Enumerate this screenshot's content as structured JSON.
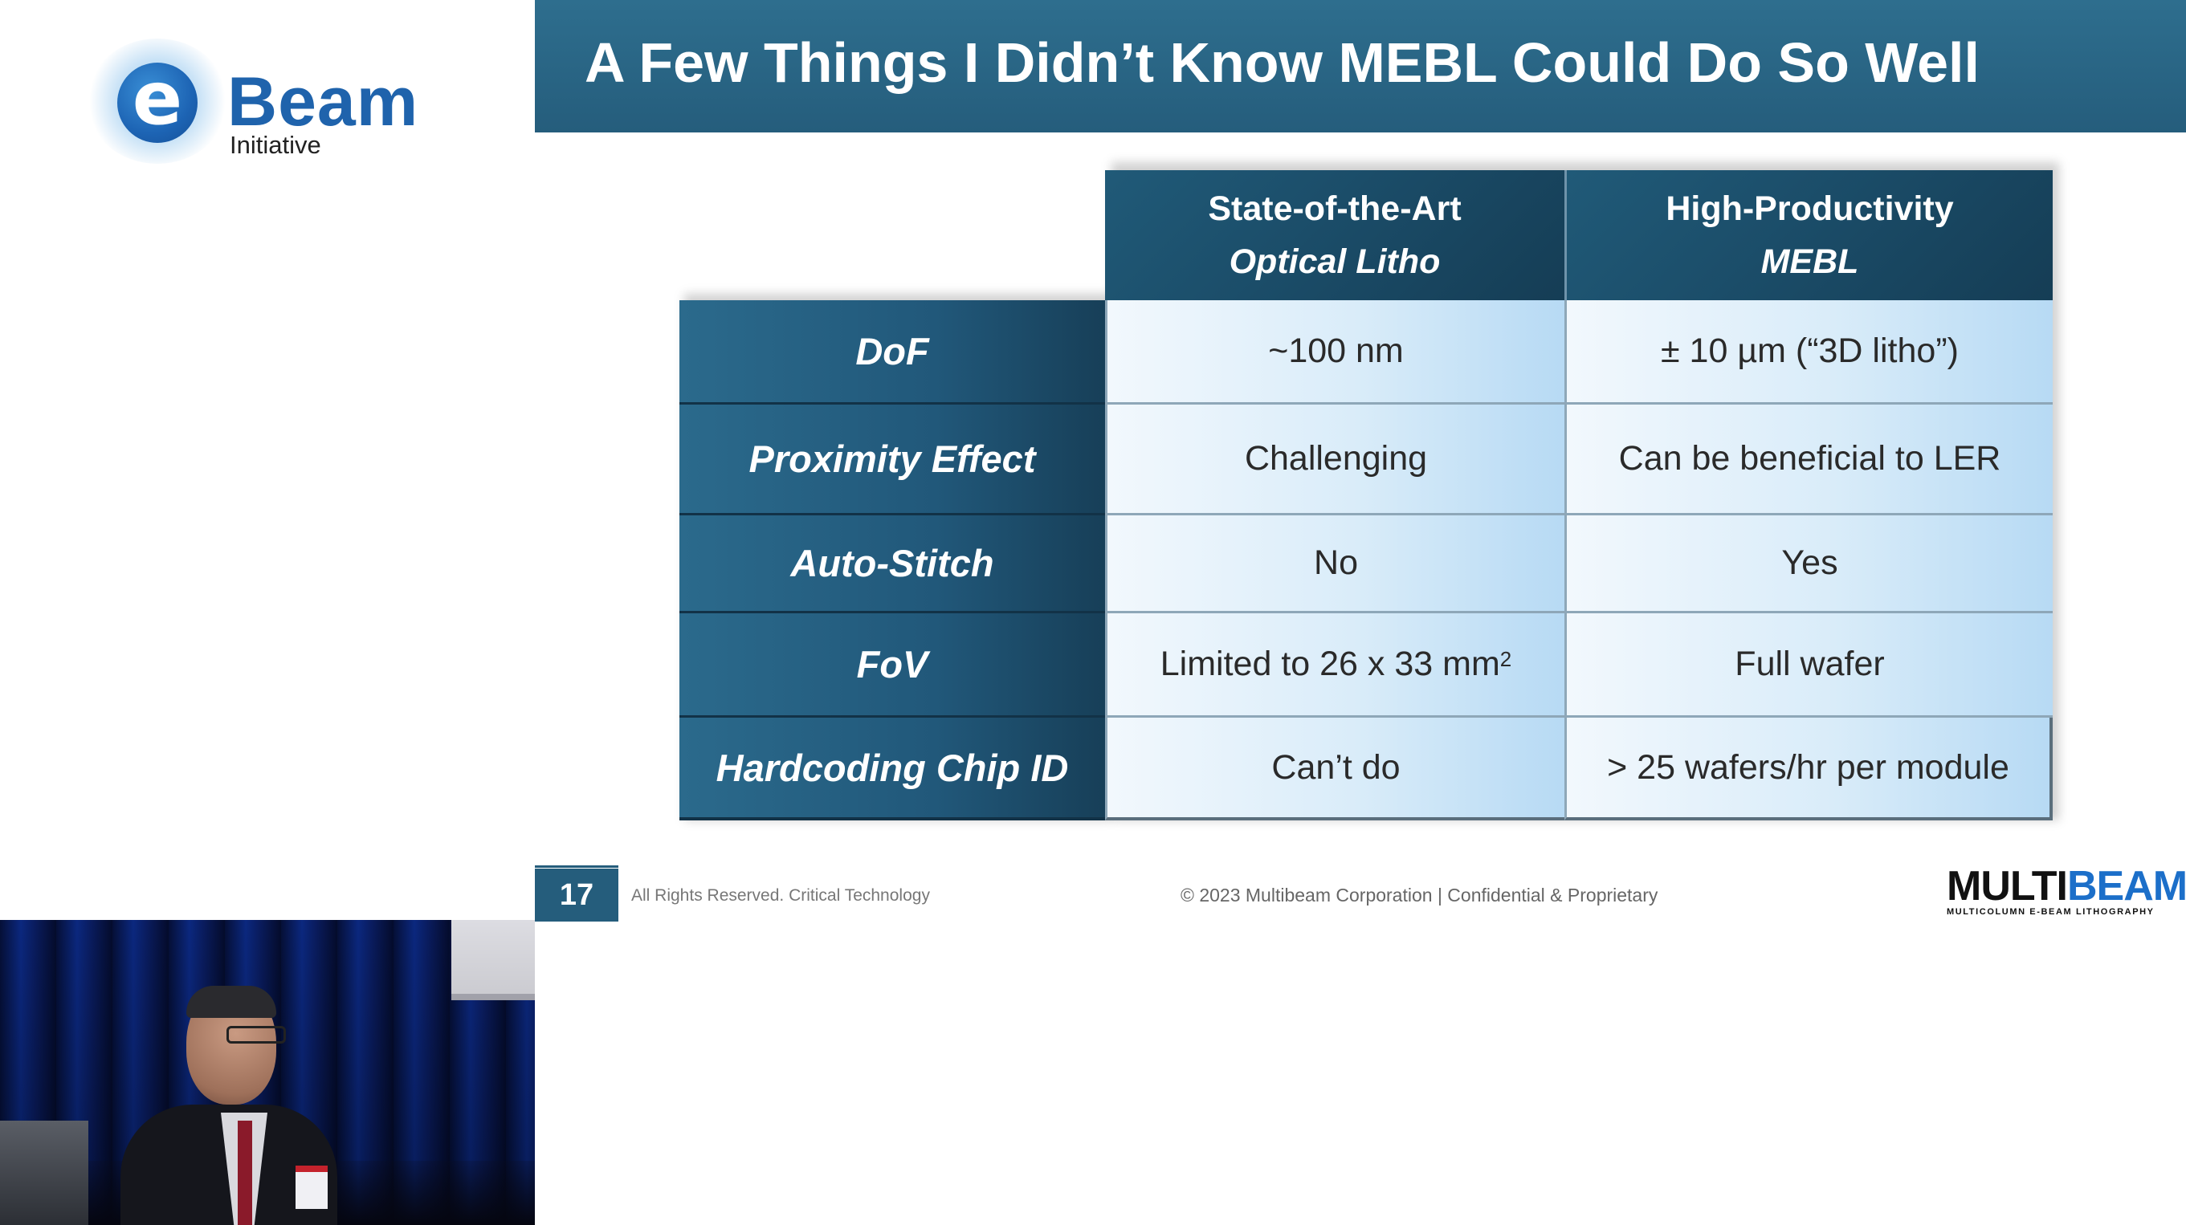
{
  "logo": {
    "letter": "e",
    "name": "Beam",
    "sub": "Initiative"
  },
  "slide": {
    "title": "A Few Things I Didn’t Know MEBL Could Do So Well",
    "table": {
      "columns": [
        {
          "line1": "State-of-the-Art",
          "line2": "Optical Litho"
        },
        {
          "line1": "High-Productivity",
          "line2": "MEBL"
        }
      ],
      "rows": [
        {
          "label": "DoF",
          "optical": "~100 nm",
          "mebl": "± 10 µm (“3D litho”)"
        },
        {
          "label": "Proximity Effect",
          "optical": "Challenging",
          "mebl": "Can be beneficial to LER"
        },
        {
          "label": "Auto-Stitch",
          "optical": "No",
          "mebl": "Yes"
        },
        {
          "label": "FoV",
          "optical": "Limited to 26 x 33 mm",
          "optical_sup": "2",
          "mebl": "Full wafer"
        },
        {
          "label": "Hardcoding Chip ID",
          "optical": "Can’t do",
          "mebl": "> 25 wafers/hr per module"
        }
      ]
    },
    "footer": {
      "page_number": "17",
      "left_text": "All Rights Reserved. Critical Technology",
      "center_text": "© 2023 Multibeam Corporation | Confidential & Proprietary",
      "brand_multi": "MULTI",
      "brand_beam": "BEAM",
      "brand_tagline": "MULTICOLUMN E-BEAM LITHOGRAPHY"
    }
  },
  "colors": {
    "title_bar": "#255d7c",
    "header_cell": "#1b4d69",
    "row_header": "#21587a",
    "value_cell_light": "#f2f8fd",
    "value_cell_dark": "#b7daf4",
    "brand_blue": "#1c6fc9"
  }
}
